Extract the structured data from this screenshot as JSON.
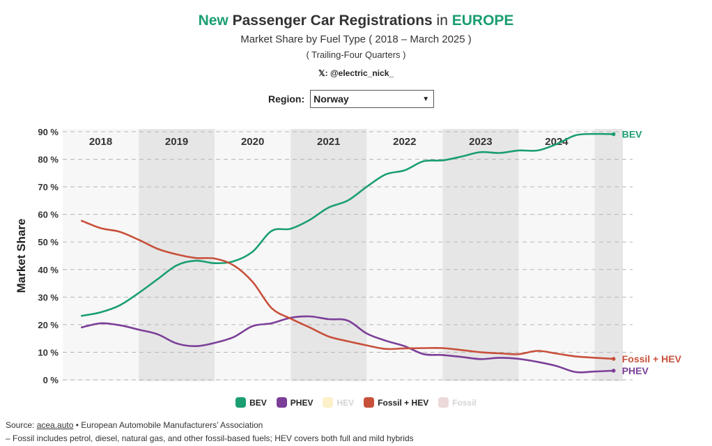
{
  "header": {
    "title_new": "New",
    "title_mid": "Passenger Car Registrations",
    "title_in": "in",
    "title_region": "EUROPE",
    "subtitle": "Market Share by Fuel Type ( 2018 – March 2025 )",
    "subnote": "( Trailing-Four Quarters )",
    "handle": "𝕏: @electric_nick_"
  },
  "region": {
    "label": "Region:",
    "value": "Norway"
  },
  "colors": {
    "accent": "#1a9e72",
    "bev": "#1a9e72",
    "phev": "#7b3f98",
    "hev": "#fbf0c8",
    "fossil_hev": "#c8503a",
    "fossil": "#ecd9d9"
  },
  "chart_data": {
    "type": "line",
    "ylabel": "Market Share",
    "ylim": [
      0,
      90
    ],
    "yticks": [
      0,
      10,
      20,
      30,
      40,
      50,
      60,
      70,
      80,
      90
    ],
    "ytick_labels": [
      "0 %",
      "10 %",
      "20 %",
      "30 %",
      "40 %",
      "50 %",
      "60 %",
      "70 %",
      "80 %",
      "90 %"
    ],
    "x": [
      2018.0,
      2018.25,
      2018.5,
      2018.75,
      2019.0,
      2019.25,
      2019.5,
      2019.75,
      2020.0,
      2020.25,
      2020.5,
      2020.75,
      2021.0,
      2021.25,
      2021.5,
      2021.75,
      2022.0,
      2022.25,
      2022.5,
      2022.75,
      2023.0,
      2023.25,
      2023.5,
      2023.75,
      2024.0,
      2024.25,
      2024.5,
      2024.75,
      2025.0
    ],
    "xlim": [
      2017.75,
      2025.25
    ],
    "years": [
      "2018",
      "2019",
      "2020",
      "2021",
      "2022",
      "2023",
      "2024"
    ],
    "series": [
      {
        "name": "BEV",
        "color": "#1a9e72",
        "end_label": "BEV",
        "values": [
          23.2,
          24.5,
          27.0,
          31.5,
          36.5,
          41.5,
          43.2,
          42.3,
          43.0,
          46.5,
          54.0,
          54.8,
          58.0,
          62.5,
          65.0,
          70.0,
          74.5,
          76.0,
          79.3,
          79.6,
          81.0,
          82.6,
          82.3,
          83.2,
          83.2,
          85.5,
          88.7,
          89.2,
          89.1
        ]
      },
      {
        "name": "PHEV",
        "color": "#7b3f98",
        "end_label": "PHEV",
        "values": [
          19.0,
          20.5,
          19.8,
          18.2,
          16.5,
          13.2,
          12.2,
          13.4,
          15.5,
          19.5,
          20.5,
          22.5,
          23.0,
          22.0,
          21.5,
          16.8,
          14.2,
          12.2,
          9.3,
          9.0,
          8.3,
          7.5,
          8.0,
          7.6,
          6.5,
          5.0,
          2.8,
          3.0,
          3.3
        ]
      },
      {
        "name": "Fossil + HEV",
        "color": "#c8503a",
        "end_label": "Fossil + HEV",
        "values": [
          57.7,
          55.0,
          53.7,
          50.8,
          47.5,
          45.5,
          44.2,
          44.0,
          41.5,
          35.5,
          26.0,
          22.2,
          19.0,
          15.7,
          14.0,
          12.5,
          11.2,
          11.4,
          11.5,
          11.5,
          10.8,
          10.0,
          9.6,
          9.3,
          10.5,
          9.5,
          8.5,
          8.0,
          7.6
        ]
      }
    ],
    "legend": [
      {
        "name": "BEV",
        "color": "#1a9e72",
        "active": true
      },
      {
        "name": "PHEV",
        "color": "#7b3f98",
        "active": true
      },
      {
        "name": "HEV",
        "color": "#fbf0c8",
        "active": false
      },
      {
        "name": "Fossil + HEV",
        "color": "#c8503a",
        "active": true
      },
      {
        "name": "Fossil",
        "color": "#ecd9d9",
        "active": false
      }
    ]
  },
  "footer": {
    "source_prefix": "Source:",
    "source_link": "acea.auto",
    "source_rest": "• European Automobile Manufacturers’ Association",
    "note": "– Fossil includes petrol, diesel, natural gas, and other fossil-based fuels; HEV covers both full and mild hybrids"
  }
}
